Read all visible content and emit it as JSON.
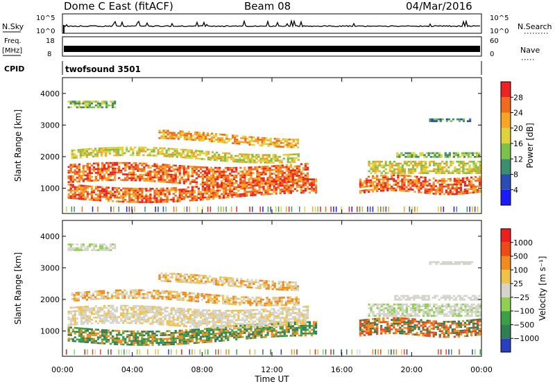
{
  "header": {
    "station": "Dome C East (fitACF)",
    "beam": "Beam 08",
    "date": "04/Mar/2016"
  },
  "status_panels": {
    "nsky_label": "N.Sky",
    "nsearch_label": "N.Search",
    "count_ticks": [
      "10^5",
      "10^0"
    ],
    "freq_label": "Freq.",
    "freq_unit": "[MHz]",
    "freq_ticks": [
      "18",
      "8"
    ],
    "nave_label": "Nave",
    "nave_ticks": [
      "60",
      "0"
    ],
    "cpid_label": "CPID",
    "cpid_value": "twofsound 3501"
  },
  "chart_data": [
    {
      "type": "heatmap",
      "name": "power",
      "ylabel": "Slant Range [km]",
      "ylim": [
        200,
        4500
      ],
      "yticks": [
        "4000",
        "3000",
        "2000",
        "1000"
      ],
      "ytick_values": [
        4000,
        3000,
        2000,
        1000
      ],
      "xlim": [
        0,
        24
      ],
      "colorbar": {
        "label": "Power [dB]",
        "ticks": [
          "28",
          "24",
          "20",
          "16",
          "12",
          "8",
          "4"
        ],
        "colors": [
          "#1a1aff",
          "#2a4cb4",
          "#3c8f6e",
          "#7cc24a",
          "#e0d23a",
          "#f5a623",
          "#f26b1d",
          "#ee2222"
        ]
      }
    },
    {
      "type": "heatmap",
      "name": "velocity",
      "ylabel": "Slant Range [km]",
      "ylim": [
        200,
        4500
      ],
      "yticks": [
        "4000",
        "3000",
        "2000",
        "1000"
      ],
      "ytick_values": [
        4000,
        3000,
        2000,
        1000
      ],
      "xlim": [
        0,
        24
      ],
      "xticks": [
        "00:00",
        "04:00",
        "08:00",
        "12:00",
        "16:00",
        "20:00",
        "00:00"
      ],
      "xtick_values": [
        0,
        4,
        8,
        12,
        16,
        20,
        24
      ],
      "xlabel": "Time UT",
      "colorbar": {
        "label": "Velocity [m s⁻¹]",
        "ticks": [
          "1000",
          "500",
          "100",
          "25",
          "−25",
          "−100",
          "−500",
          "−1000"
        ],
        "colors": [
          "#2a3fbf",
          "#2f7f55",
          "#3aa043",
          "#8fd14f",
          "#d4d4cc",
          "#f0c24a",
          "#f08c1e",
          "#f04a14",
          "#ee1e1e"
        ]
      }
    }
  ]
}
